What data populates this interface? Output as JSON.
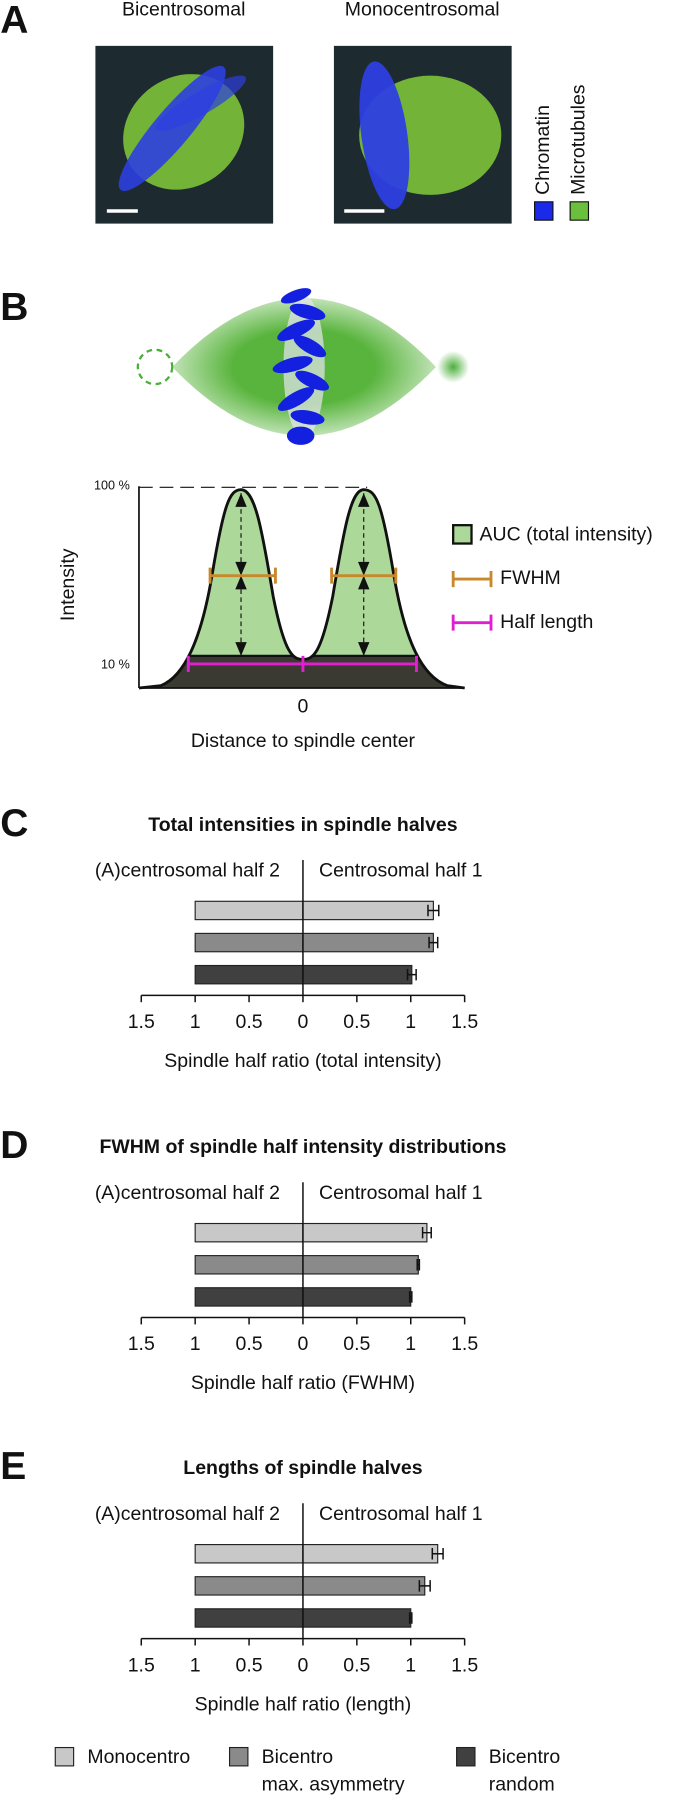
{
  "panel_a": {
    "label": "A",
    "images": [
      "Bicentrosomal",
      "Monocentrosomal"
    ],
    "legend": [
      "Chromatin",
      "Microtubules"
    ]
  },
  "panel_b": {
    "label": "B",
    "y_label": "Intensity",
    "y_top": "100 %",
    "y_bottom": "10 %",
    "x_tick": "0",
    "x_label": "Distance to spindle center",
    "legend": [
      "AUC (total intensity)",
      "FWHM",
      "Half length"
    ]
  },
  "chart_data": [
    {
      "type": "bar",
      "panel_label": "C",
      "title": "Total intensities in spindle halves",
      "x_label": "Spindle half ratio (total intensity)",
      "series": [
        {
          "name": "(A)centrosomal half 2",
          "values": [
            1,
            1,
            1
          ]
        },
        {
          "name": "Centrosomal half 1",
          "values": [
            1.21,
            1.21,
            1.01
          ],
          "errors": [
            0.05,
            0.04,
            0.04
          ]
        }
      ],
      "xlim": [
        -1.5,
        1.5
      ],
      "xticks": [
        {
          "value": -1.5,
          "label": "1.5"
        },
        {
          "value": -1,
          "label": "1"
        },
        {
          "value": -0.5,
          "label": "0.5"
        },
        0,
        0.5,
        1,
        1.5
      ]
    },
    {
      "type": "bar",
      "panel_label": "D",
      "title": "FWHM of spindle half intensity distributions",
      "x_label": "Spindle half ratio (FWHM)",
      "series": [
        {
          "name": "(A)centrosomal half 2",
          "values": [
            1,
            1,
            1
          ]
        },
        {
          "name": "Centrosomal half 1",
          "values": [
            1.15,
            1.07,
            1.0
          ],
          "errors": [
            0.04,
            0.01,
            0.01
          ]
        }
      ],
      "xlim": [
        -1.5,
        1.5
      ],
      "xticks": [
        {
          "value": -1.5,
          "label": "1.5"
        },
        {
          "value": -1,
          "label": "1"
        },
        {
          "value": -0.5,
          "label": "0.5"
        },
        0,
        0.5,
        1,
        1.5
      ]
    },
    {
      "type": "bar",
      "panel_label": "E",
      "title": "Lengths of spindle halves",
      "x_label": "Spindle half ratio (length)",
      "series": [
        {
          "name": "(A)centrosomal half 2",
          "values": [
            1,
            1,
            1
          ]
        },
        {
          "name": "Centrosomal half 1",
          "values": [
            1.25,
            1.13,
            1.0
          ],
          "errors": [
            0.05,
            0.05,
            0.01
          ]
        }
      ],
      "xlim": [
        -1.5,
        1.5
      ],
      "xticks": [
        {
          "value": -1.5,
          "label": "1.5"
        },
        {
          "value": -1,
          "label": "1"
        },
        {
          "value": -0.5,
          "label": "0.5"
        },
        0,
        0.5,
        1,
        1.5
      ]
    }
  ],
  "legend": [
    {
      "lines": [
        "Monocentro"
      ],
      "color": "#c8c8c8"
    },
    {
      "lines": [
        "Bicentro",
        "max. asymmetry"
      ],
      "color": "#8a8a8a"
    },
    {
      "lines": [
        "Bicentro",
        "random"
      ],
      "color": "#404040"
    }
  ]
}
